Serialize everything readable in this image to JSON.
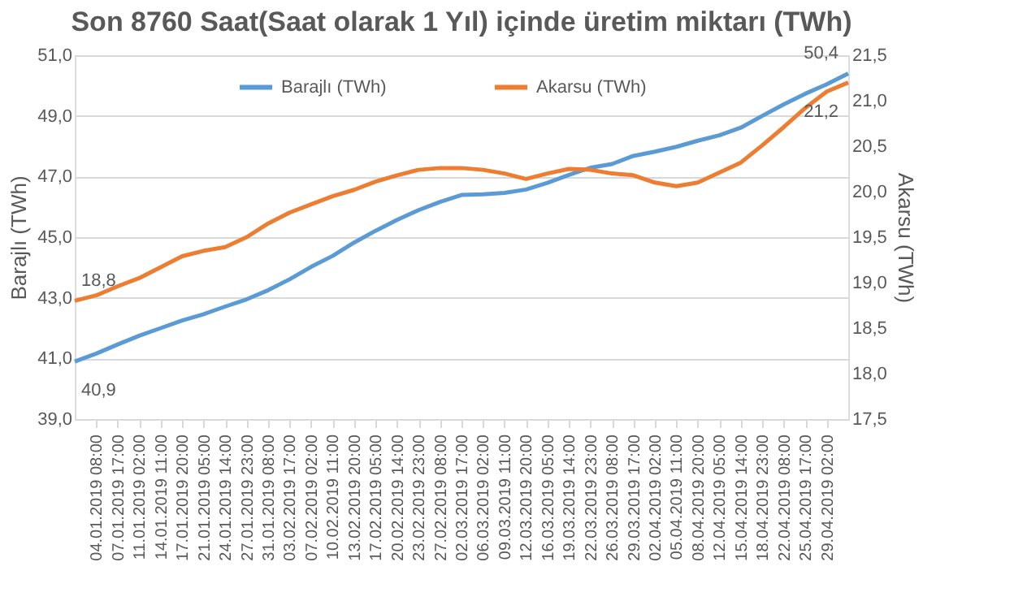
{
  "chart_data": {
    "type": "line",
    "title": "Son 8760 Saat(Saat olarak 1 Yıl) içinde üretim miktarı (TWh)",
    "categories": [
      null,
      "04.01.2019 08:00",
      "07.01.2019 17:00",
      "11.01.2019 02:00",
      "14.01.2019 11:00",
      "17.01.2019 20:00",
      "21.01.2019 05:00",
      "24.01.2019 14:00",
      "27.01.2019 23:00",
      "31.01.2019 08:00",
      "03.02.2019 17:00",
      "07.02.2019 02:00",
      "10.02.2019 11:00",
      "13.02.2019 20:00",
      "17.02.2019 05:00",
      "20.02.2019 14:00",
      "23.02.2019 23:00",
      "27.02.2019 08:00",
      "02.03.2019 17:00",
      "06.03.2019 02:00",
      "09.03.2019 11:00",
      "12.03.2019 20:00",
      "16.03.2019 05:00",
      "19.03.2019 14:00",
      "22.03.2019 23:00",
      "26.03.2019 08:00",
      "29.03.2019 17:00",
      "02.04.2019 02:00",
      "05.04.2019 11:00",
      "08.04.2019 20:00",
      "12.04.2019 05:00",
      "15.04.2019 14:00",
      "18.04.2019 23:00",
      "22.04.2019 08:00",
      "25.04.2019 17:00",
      "29.04.2019 02:00",
      null
    ],
    "series": [
      {
        "name": "Barajlı (TWh)",
        "color": "#5b9bd5",
        "values": [
          40.9,
          41.16,
          41.46,
          41.75,
          42.0,
          42.25,
          42.46,
          42.71,
          42.95,
          43.25,
          43.61,
          44.02,
          44.38,
          44.82,
          45.21,
          45.57,
          45.89,
          46.16,
          46.39,
          46.41,
          46.46,
          46.57,
          46.79,
          47.05,
          47.29,
          47.41,
          47.68,
          47.82,
          47.98,
          48.18,
          48.36,
          48.61,
          49.0,
          49.38,
          49.73,
          50.04,
          50.4
        ],
        "value_labels": [
          "40,9",
          null,
          null,
          null,
          null,
          null,
          null,
          null,
          null,
          null,
          null,
          null,
          null,
          null,
          null,
          null,
          null,
          null,
          null,
          null,
          null,
          null,
          null,
          null,
          null,
          null,
          null,
          null,
          null,
          null,
          null,
          null,
          null,
          null,
          null,
          null,
          "50,4"
        ]
      },
      {
        "name": "Akarsu (TWh)",
        "color": "#ed7d31",
        "axis": "y2",
        "values": [
          18.8,
          18.86,
          18.96,
          19.05,
          19.17,
          19.29,
          19.35,
          19.39,
          19.5,
          19.65,
          19.77,
          19.86,
          19.95,
          20.02,
          20.11,
          20.18,
          20.24,
          20.26,
          20.26,
          20.24,
          20.2,
          20.14,
          20.2,
          20.25,
          20.24,
          20.2,
          20.18,
          20.1,
          20.06,
          20.1,
          20.21,
          20.32,
          20.51,
          20.71,
          20.92,
          21.1,
          21.2
        ],
        "value_labels": [
          "18,8",
          null,
          null,
          null,
          null,
          null,
          null,
          null,
          null,
          null,
          null,
          null,
          null,
          null,
          null,
          null,
          null,
          null,
          null,
          null,
          null,
          null,
          null,
          null,
          null,
          null,
          null,
          null,
          null,
          null,
          null,
          null,
          null,
          null,
          null,
          null,
          "21,2"
        ]
      }
    ],
    "ylabel": "Barajlı (TWh)",
    "y2label": "Akarsu (TWh)",
    "ylim": [
      39,
      51
    ],
    "yticks": [
      {
        "value": 39,
        "label": "39,0"
      },
      {
        "value": 41,
        "label": "41,0"
      },
      {
        "value": 43,
        "label": "43,0"
      },
      {
        "value": 45,
        "label": "45,0"
      },
      {
        "value": 47,
        "label": "47,0"
      },
      {
        "value": 49,
        "label": "49,0"
      },
      {
        "value": 51,
        "label": "51,0"
      }
    ],
    "y2lim": [
      17.5,
      21.5
    ],
    "y2ticks": [
      {
        "value": 17.5,
        "label": "17,5"
      },
      {
        "value": 18,
        "label": "18,0"
      },
      {
        "value": 18.5,
        "label": "18,5"
      },
      {
        "value": 19,
        "label": "19,0"
      },
      {
        "value": 19.5,
        "label": "19,5"
      },
      {
        "value": 20,
        "label": "20,0"
      },
      {
        "value": 20.5,
        "label": "20,5"
      },
      {
        "value": 21,
        "label": "21,0"
      },
      {
        "value": 21.5,
        "label": "21,5"
      }
    ],
    "grid": "y",
    "legend": "top",
    "line_style": "solid"
  }
}
